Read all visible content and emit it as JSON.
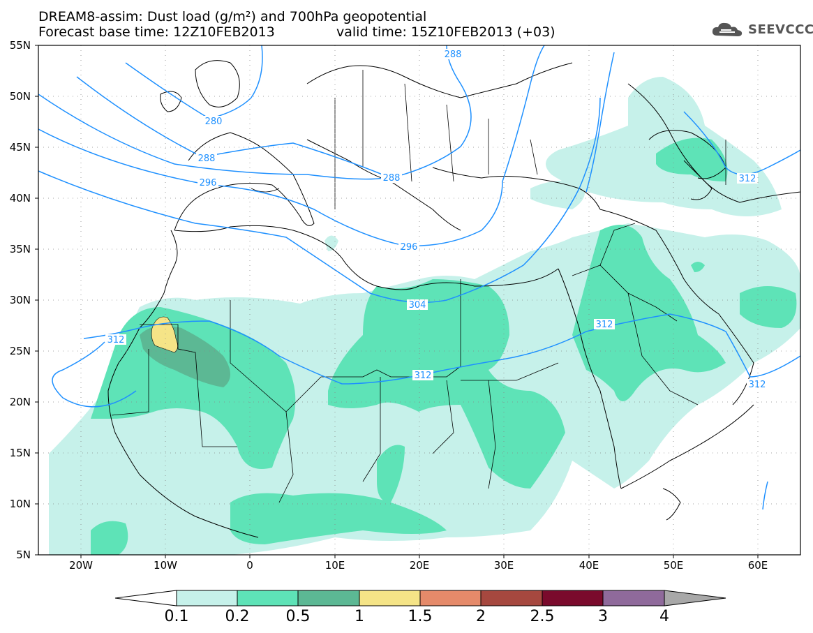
{
  "header": {
    "title": "DREAM8-assim: Dust load (g/m²) and 700hPa geopotential",
    "base_time": "Forecast base time: 12Z10FEB2013",
    "valid_time": "valid time: 15Z10FEB2013 (+03)"
  },
  "logo": {
    "text": "SEEVCCC",
    "icon": "cloud-icon"
  },
  "map": {
    "lat_range": [
      5,
      55
    ],
    "lon_range": [
      -25,
      65
    ],
    "lat_labels": [
      "55N",
      "50N",
      "45N",
      "40N",
      "35N",
      "30N",
      "25N",
      "20N",
      "15N",
      "10N",
      "5N"
    ],
    "lon_labels": [
      "20W",
      "10W",
      "0",
      "10E",
      "20E",
      "30E",
      "40E",
      "50E",
      "60E"
    ],
    "contour_color": "#1e90ff",
    "contour_labels": [
      "288",
      "280",
      "288",
      "296",
      "288",
      "296",
      "304",
      "312",
      "312",
      "312",
      "312",
      "312"
    ]
  },
  "colorbar": {
    "levels": [
      "0.1",
      "0.2",
      "0.5",
      "1",
      "1.5",
      "2",
      "2.5",
      "3",
      "4"
    ],
    "colors": [
      "#c6f1ea",
      "#5ee3b7",
      "#5cb894",
      "#f5e487",
      "#e58a6a",
      "#a6483f",
      "#7a0a2c",
      "#8f6a9b",
      "#a8a8a8"
    ]
  }
}
